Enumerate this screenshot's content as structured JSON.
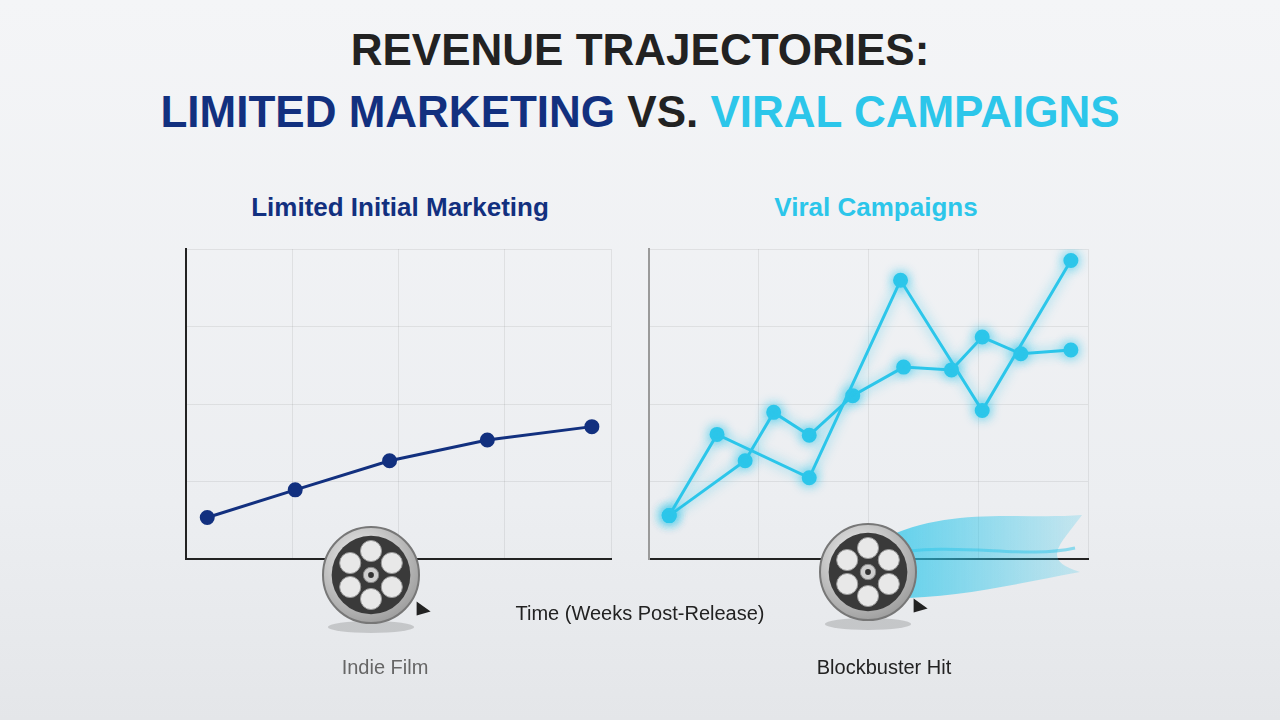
{
  "title": {
    "line1": "REVENUE TRAJECTORIES:",
    "line2": [
      "LIMITED MARKETING",
      "VS.",
      "VIRAL CAMPAIGNS"
    ]
  },
  "x_label": "Time (Weeks Post-Release)",
  "chart_data": [
    {
      "type": "line",
      "title": "Limited Initial Marketing",
      "annotation": "Indie Film",
      "series": [
        {
          "color": "#12307f",
          "marker": "circle",
          "line_style": "solid",
          "x": [
            0.5,
            2.57,
            4.79,
            7.09,
            9.55
          ],
          "values": [
            13.4,
            22.3,
            31.7,
            38.4,
            42.7
          ]
        }
      ],
      "xlim": [
        0,
        10
      ],
      "xticks": [
        0,
        2.5,
        5,
        7.5,
        10
      ],
      "ylim": [
        0,
        100
      ],
      "yticks": [
        0,
        25,
        50,
        75,
        100
      ],
      "grid": true,
      "tick_labels": false
    },
    {
      "type": "line",
      "title": "Viral Campaigns",
      "annotation": "Blockbuster Hit",
      "series": [
        {
          "color": "#2cc6ea",
          "marker": "circle",
          "line_style": "solid",
          "x": [
            0.46,
            1.55,
            3.65,
            5.73,
            7.59,
            9.61
          ],
          "values": [
            14.0,
            40.2,
            26.2,
            89.9,
            47.9,
            96.3
          ]
        },
        {
          "color": "#2cc6ea",
          "marker": "circle",
          "line_style": "solid",
          "x": [
            0.46,
            2.19,
            2.84,
            3.65,
            4.64,
            5.8,
            6.89,
            7.59,
            8.47,
            9.61
          ],
          "values": [
            14.0,
            31.7,
            47.3,
            39.9,
            52.7,
            61.9,
            61.0,
            71.6,
            66.2,
            67.4
          ]
        }
      ],
      "xlim": [
        0,
        10
      ],
      "xticks": [
        0,
        2.5,
        5,
        7.5,
        10
      ],
      "ylim": [
        0,
        100
      ],
      "yticks": [
        0,
        25,
        50,
        75,
        100
      ],
      "grid": true,
      "tick_labels": false
    }
  ]
}
